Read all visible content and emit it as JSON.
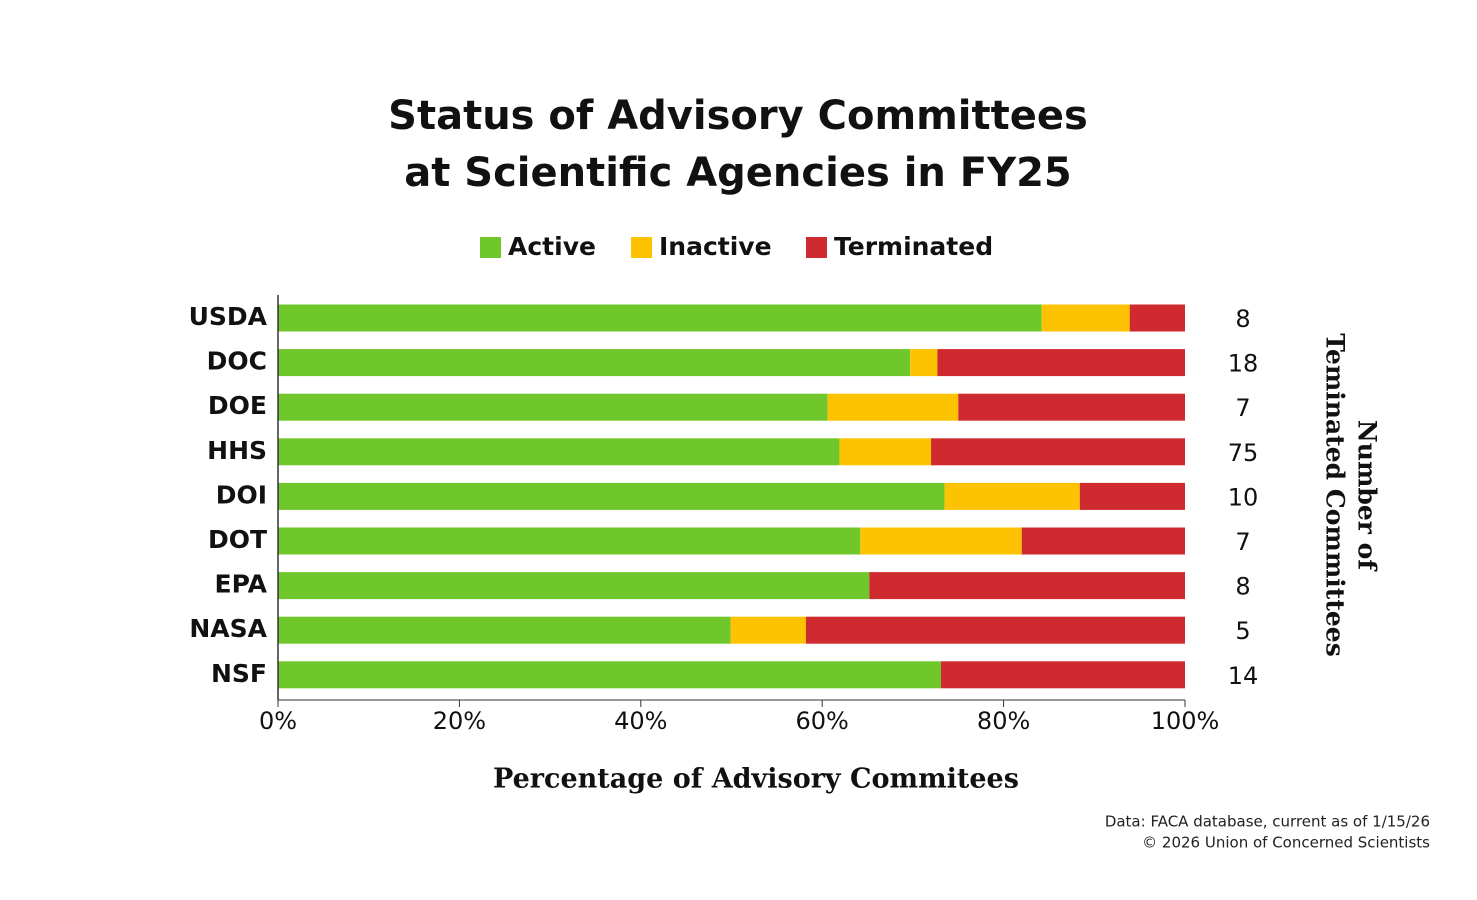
{
  "chart_data": {
    "type": "stacked-bar-horizontal",
    "title": [
      "Status of Advisory Committees",
      "at Scientific Agencies in FY25"
    ],
    "categories": [
      "USDA",
      "DOC",
      "DOE",
      "HHS",
      "DOI",
      "DOT",
      "EPA",
      "NASA",
      "NSF"
    ],
    "series": [
      {
        "name": "Active",
        "color": "#6fc72b",
        "values": [
          84.2,
          69.7,
          60.6,
          61.9,
          73.5,
          64.2,
          65.2,
          49.9,
          73.1
        ]
      },
      {
        "name": "Inactive",
        "color": "#fdc300",
        "values": [
          9.7,
          3.0,
          14.4,
          10.1,
          14.9,
          17.8,
          0,
          8.3,
          0
        ]
      },
      {
        "name": "Terminated",
        "color": "#cf2a2f",
        "values": [
          6.1,
          27.3,
          25.0,
          28.0,
          11.6,
          18.0,
          34.8,
          41.8,
          26.9
        ]
      }
    ],
    "terminated_counts": [
      8,
      18,
      7,
      75,
      10,
      7,
      8,
      5,
      14
    ],
    "right_label": [
      "Number of",
      "Teminated Committees"
    ],
    "xlabel": "Percentage of Advisory Commitees",
    "xlim": [
      0,
      100
    ],
    "xticks": [
      {
        "value": 0,
        "label": "0%"
      },
      {
        "value": 20,
        "label": "20%"
      },
      {
        "value": 40,
        "label": "40%"
      },
      {
        "value": 60,
        "label": "60%"
      },
      {
        "value": 80,
        "label": "80%"
      },
      {
        "value": 100,
        "label": "100%"
      }
    ],
    "source": [
      "Data: FACA database, current as of 1/15/26",
      "© 2026 Union of Concerned Scientists"
    ]
  }
}
